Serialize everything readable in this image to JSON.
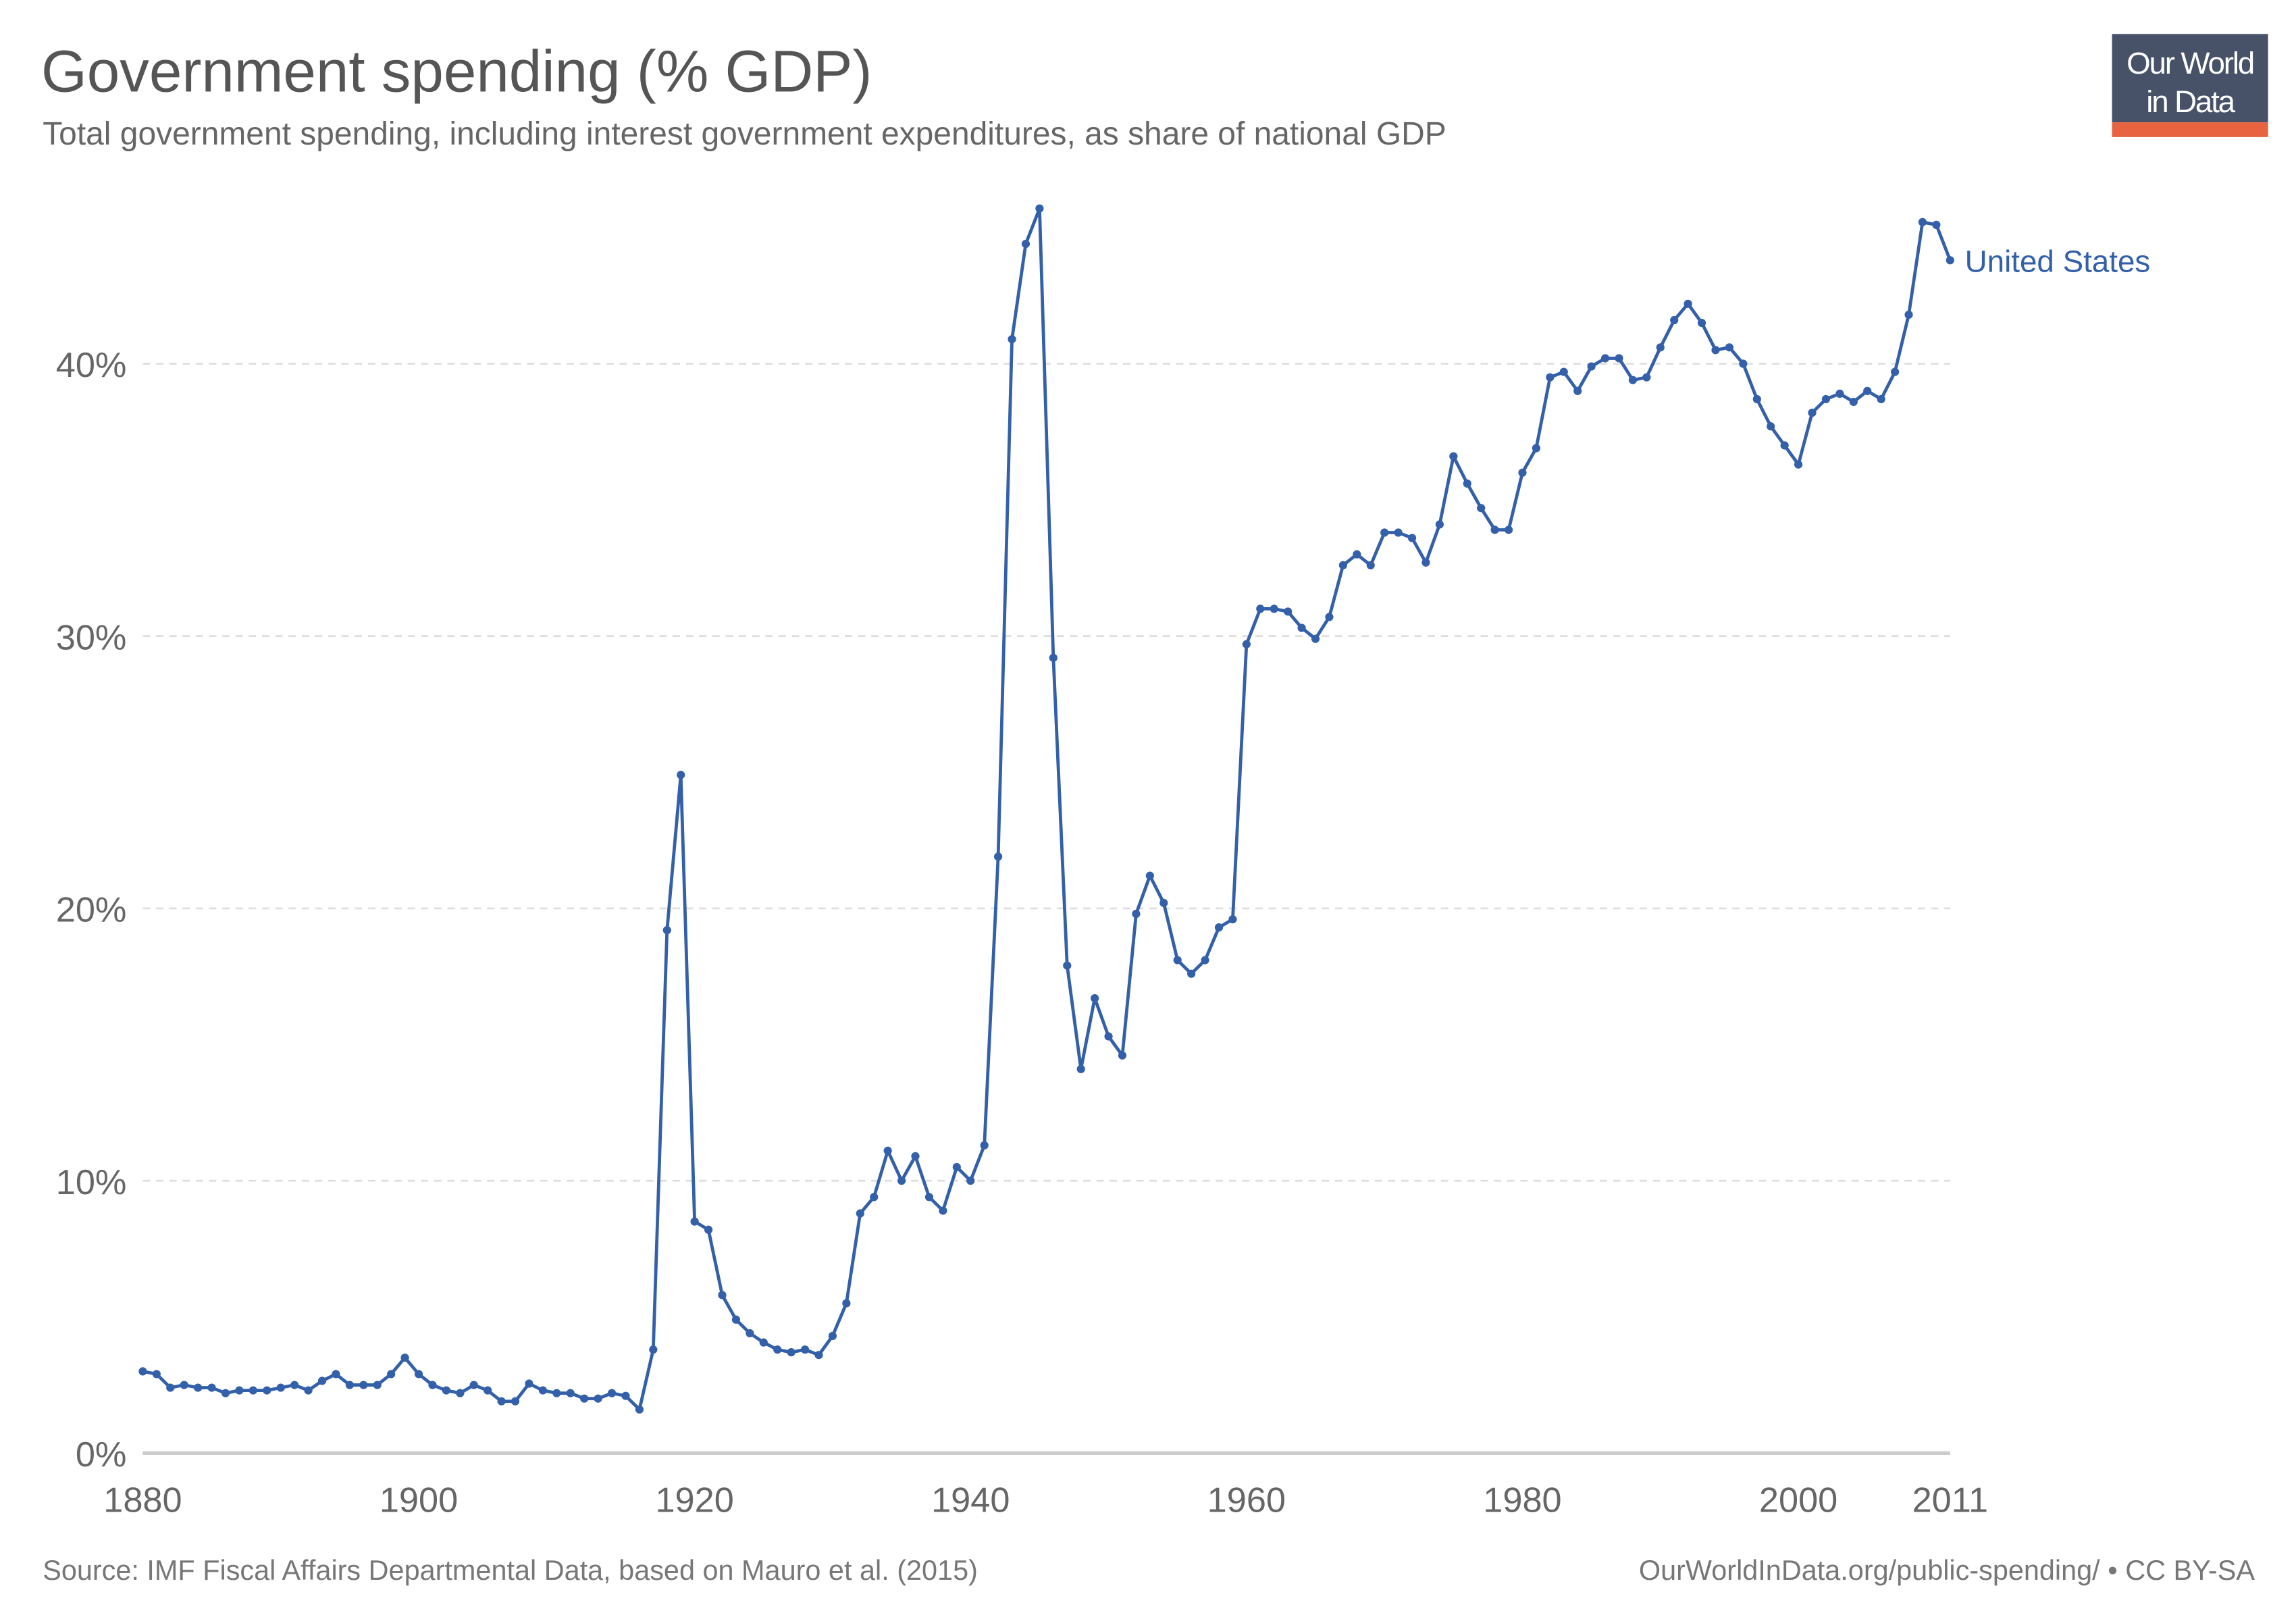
{
  "header": {
    "title": "Government spending (% GDP)",
    "subtitle": "Total government spending, including interest government expenditures, as share of national GDP"
  },
  "logo": {
    "line1": "Our World",
    "line2": "in Data",
    "bg_color": "#475168",
    "accent_color": "#e8633f"
  },
  "footer": {
    "source": "Source: IMF Fiscal Affairs Departmental Data, based on Mauro et al. (2015)",
    "license": "OurWorldInData.org/public-spending/ • CC BY-SA"
  },
  "chart_data": {
    "type": "line",
    "title": "Government spending (% GDP)",
    "xlabel": "",
    "ylabel": "",
    "xlim": [
      1880,
      2011
    ],
    "ylim": [
      0,
      47
    ],
    "grid": true,
    "x_ticks": [
      "1880",
      "1900",
      "1920",
      "1940",
      "1960",
      "1980",
      "2000",
      "2011"
    ],
    "x_tick_values": [
      1880,
      1900,
      1920,
      1940,
      1960,
      1980,
      2000,
      2011
    ],
    "y_ticks": [
      "0%",
      "10%",
      "20%",
      "30%",
      "40%"
    ],
    "y_tick_values": [
      0,
      10,
      20,
      30,
      40
    ],
    "series": [
      {
        "name": "United States",
        "color": "#3360a9",
        "x_start": 1880,
        "values": [
          3.0,
          2.9,
          2.4,
          2.5,
          2.4,
          2.4,
          2.2,
          2.3,
          2.3,
          2.3,
          2.4,
          2.5,
          2.3,
          2.65,
          2.9,
          2.5,
          2.5,
          2.5,
          2.9,
          3.5,
          2.9,
          2.5,
          2.3,
          2.2,
          2.5,
          2.3,
          1.9,
          1.9,
          2.55,
          2.3,
          2.2,
          2.2,
          2.0,
          2.0,
          2.2,
          2.1,
          1.6,
          3.8,
          19.2,
          24.9,
          8.5,
          8.2,
          5.8,
          4.9,
          4.4,
          4.06,
          3.8,
          3.7,
          3.8,
          3.6,
          4.3,
          5.5,
          8.8,
          9.4,
          11.1,
          10.0,
          10.9,
          9.4,
          8.9,
          10.5,
          10.0,
          11.3,
          21.9,
          40.9,
          44.4,
          45.7,
          29.2,
          17.9,
          14.1,
          16.7,
          15.3,
          14.6,
          19.8,
          21.2,
          20.2,
          18.1,
          17.6,
          18.1,
          19.3,
          19.6,
          29.7,
          31.0,
          31.0,
          30.9,
          30.3,
          29.9,
          30.7,
          32.6,
          33.0,
          32.6,
          33.8,
          33.8,
          33.6,
          32.7,
          34.1,
          36.6,
          35.6,
          34.7,
          33.9,
          33.9,
          36.0,
          36.9,
          39.5,
          39.7,
          39.0,
          39.9,
          40.2,
          40.2,
          39.4,
          39.5,
          40.6,
          41.6,
          42.2,
          41.5,
          40.5,
          40.6,
          40.0,
          38.7,
          37.7,
          37.0,
          36.3,
          38.2,
          38.7,
          38.9,
          38.6,
          39.0,
          38.7,
          39.7,
          41.8,
          45.2,
          45.1,
          43.8
        ]
      }
    ]
  }
}
